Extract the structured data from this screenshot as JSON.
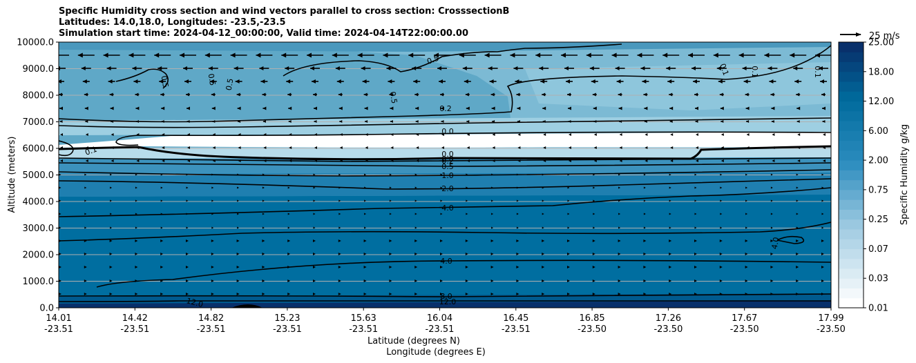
{
  "chart_data": {
    "type": "contourf-crosssection",
    "title_lines": [
      "Specific Humidity cross section and wind vectors parallel to cross section: CrosssectionB",
      "Latitudes: 14.0,18.0, Longitudes: -23.5,-23.5",
      "Simulation start time: 2024-04-12_00:00:00, Valid time: 2024-04-14T22:00:00.00"
    ],
    "ylabel": "Altitude (meters)",
    "xlabel_lat": "Latitude (degrees N)",
    "xlabel_lon": "Longitude (degrees E)",
    "ylim": [
      0,
      10000
    ],
    "yticks": [
      {
        "value": 0,
        "label": "0.0"
      },
      {
        "value": 1000,
        "label": "1000.0"
      },
      {
        "value": 2000,
        "label": "2000.0"
      },
      {
        "value": 3000,
        "label": "3000.0"
      },
      {
        "value": 4000,
        "label": "4000.0"
      },
      {
        "value": 5000,
        "label": "5000.0"
      },
      {
        "value": 6000,
        "label": "6000.0"
      },
      {
        "value": 7000,
        "label": "7000.0"
      },
      {
        "value": 8000,
        "label": "8000.0"
      },
      {
        "value": 9000,
        "label": "9000.0"
      },
      {
        "value": 10000,
        "label": "10000.0"
      }
    ],
    "xticks": [
      {
        "lat": "14.01",
        "lon": "-23.51"
      },
      {
        "lat": "14.42",
        "lon": "-23.51"
      },
      {
        "lat": "14.82",
        "lon": "-23.51"
      },
      {
        "lat": "15.23",
        "lon": "-23.51"
      },
      {
        "lat": "15.63",
        "lon": "-23.51"
      },
      {
        "lat": "16.04",
        "lon": "-23.51"
      },
      {
        "lat": "16.45",
        "lon": "-23.51"
      },
      {
        "lat": "16.85",
        "lon": "-23.50"
      },
      {
        "lat": "17.26",
        "lon": "-23.50"
      },
      {
        "lat": "17.67",
        "lon": "-23.50"
      },
      {
        "lat": "17.99",
        "lon": "-23.50"
      }
    ],
    "colorbar": {
      "label": "Specific Humidity g/kg",
      "ticks": [
        "0.01",
        "0.03",
        "0.07",
        "0.25",
        "0.75",
        "2.00",
        "6.00",
        "12.00",
        "18.00",
        "25.00"
      ]
    },
    "quiver_key": "25 m/s",
    "contour_labels": [
      "0.5",
      "0.5",
      "0.5",
      "0.5",
      "0.5",
      "0.1",
      "0.1",
      "0.1",
      "0.2",
      "0.0",
      "0.1",
      "0.0",
      "0.0",
      "0.2",
      "0.5",
      "1.0",
      "2.0",
      "4.0",
      "4.0",
      "4.0",
      "8.0",
      "12.0",
      "12.0"
    ],
    "colors": {
      "level_low": "#eef6f9",
      "level_high": "#08306b",
      "contour": "#000000",
      "gridline": "#b0b0b0"
    }
  }
}
